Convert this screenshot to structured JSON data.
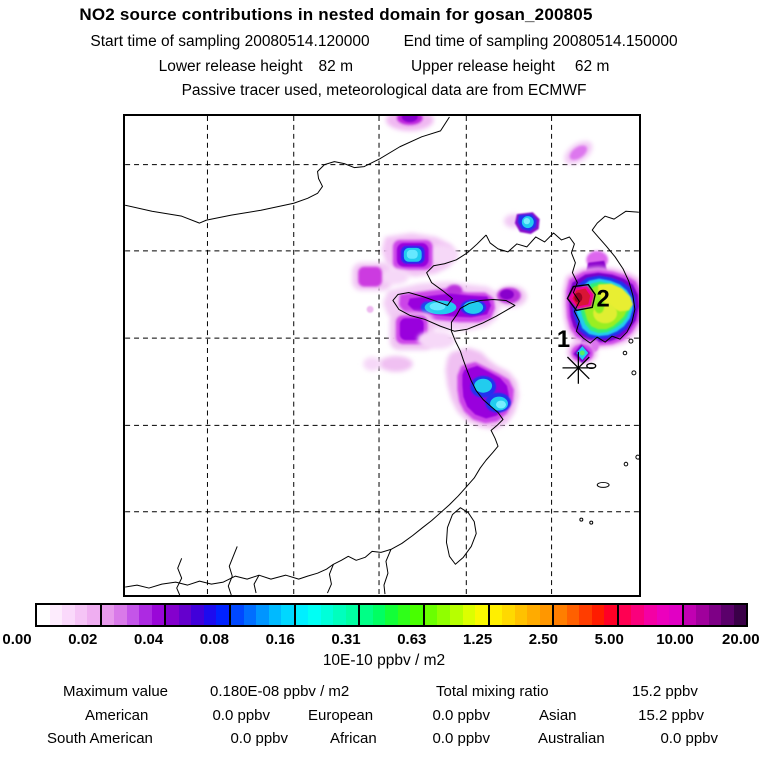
{
  "header": {
    "title": "NO2 source contributions in nested domain for gosan_200805",
    "start_label": "Start time of sampling 20080514.120000",
    "end_label": "End time of sampling 20080514.150000",
    "lower_label": "Lower release height",
    "lower_value": "82 m",
    "upper_label": "Upper release height",
    "upper_value": "62 m",
    "tracer_line": "Passive tracer used, meteorological data are from ECMWF"
  },
  "colorbar": {
    "ticks": [
      "0.00",
      "0.02",
      "0.04",
      "0.08",
      "0.16",
      "0.31",
      "0.63",
      "1.25",
      "2.50",
      "5.00",
      "10.00",
      "20.00"
    ],
    "unit": "10E-10 ppbv / m2",
    "segments": [
      [
        "#ffffff",
        "#fdecfd",
        "#fad9fb",
        "#f5c4f6",
        "#efaef1"
      ],
      [
        "#e79aec",
        "#d97ae9",
        "#c455e9",
        "#ad2ae2",
        "#9a07d8"
      ],
      [
        "#8400cd",
        "#6500cd",
        "#4100da",
        "#1c0bef",
        "#0022ff"
      ],
      [
        "#0048ff",
        "#006eff",
        "#0095ff",
        "#00baff",
        "#00d7ff"
      ],
      [
        "#00efff",
        "#00fff4",
        "#00ffd9",
        "#00ffbd",
        "#00ffa2"
      ],
      [
        "#00ff86",
        "#00ff62",
        "#12ff38",
        "#2fff19",
        "#48ff00"
      ],
      [
        "#6aff00",
        "#90ff00",
        "#b7ff00",
        "#dcff00",
        "#faf900"
      ],
      [
        "#ffef00",
        "#ffd900",
        "#ffc100",
        "#ffab00",
        "#ff9700"
      ],
      [
        "#ff7e00",
        "#ff6000",
        "#ff3d00",
        "#ff1c00",
        "#ff0026"
      ],
      [
        "#ff0052",
        "#fa007c",
        "#f400a4",
        "#ec00bd",
        "#e100c4"
      ],
      [
        "#c100b2",
        "#a0009c",
        "#7e0086",
        "#5b006b",
        "#3a0048"
      ]
    ]
  },
  "map": {
    "markers": [
      {
        "label": "1"
      },
      {
        "label": "2"
      },
      {
        "symbol": "asterisk-receptor"
      }
    ]
  },
  "stats": {
    "max_label": "Maximum value",
    "max_value": "0.180E-08 ppbv / m2",
    "total_label": "Total mixing ratio",
    "total_value": "15.2 ppbv",
    "regions": [
      {
        "name": "American",
        "value": "0.0 ppbv"
      },
      {
        "name": "European",
        "value": "0.0 ppbv"
      },
      {
        "name": "Asian",
        "value": "15.2 ppbv"
      },
      {
        "name": "South American",
        "value": "0.0 ppbv"
      },
      {
        "name": "African",
        "value": "0.0 ppbv"
      },
      {
        "name": "Australian",
        "value": "0.0 ppbv"
      }
    ]
  },
  "chart_data": {
    "type": "heatmap",
    "title": "NO2 source contributions in nested domain for gosan_200805",
    "subtitle": [
      "Start time of sampling 20080514.120000",
      "End time of sampling 20080514.150000",
      "Lower release height 82 m",
      "Upper release height 62 m",
      "Passive tracer used, meteorological data are from ECMWF"
    ],
    "colorbar_tick_values": [
      0.0,
      0.02,
      0.04,
      0.08,
      0.16,
      0.31,
      0.63,
      1.25,
      2.5,
      5.0,
      10.0,
      20.0
    ],
    "colorbar_unit": "10E-10 ppbv / m2",
    "maximum_value": "0.180E-08 ppbv / m2",
    "total_mixing_ratio": "15.2 ppbv",
    "contributions": [
      {
        "region": "American",
        "value_ppbv": 0.0
      },
      {
        "region": "European",
        "value_ppbv": 0.0
      },
      {
        "region": "Asian",
        "value_ppbv": 15.2
      },
      {
        "region": "South American",
        "value_ppbv": 0.0
      },
      {
        "region": "African",
        "value_ppbv": 0.0
      },
      {
        "region": "Australian",
        "value_ppbv": 0.0
      }
    ],
    "annotations": [
      "1",
      "2",
      "asterisk marker near Gosan receptor"
    ],
    "hotspots": [
      "South Korea: strongest plume, yellow/green core with red peak cell near marker 2 (~5-10 units)",
      "Beijing area: purple blob with cyan core (~0.1-0.3 units)",
      "Shandong / Bohai coast band: purple with two cyan cores",
      "Yangtze delta / Shanghai: purple blob with cyan core",
      "Small cyan spot northeast of Bohai; faint magenta smudges over NE China",
      "Small cyan/purple spot just north of receptor asterisk near Jeju"
    ],
    "grid": "dashed lat/lon graticule, 6x6 cells",
    "legend_position": "horizontal colorbar below map"
  }
}
